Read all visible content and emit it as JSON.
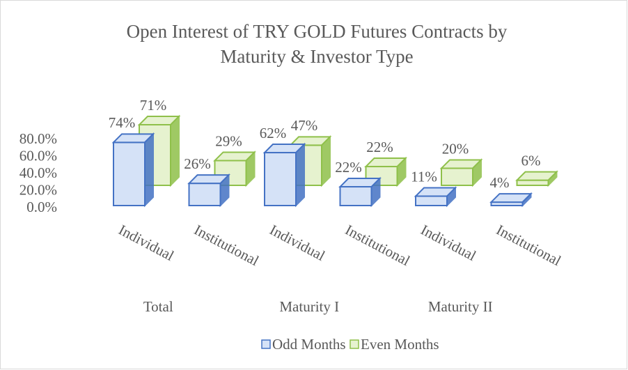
{
  "chart_data": {
    "type": "bar3d",
    "title": "Open Interest of TRY GOLD Futures Contracts by Maturity & Investor  Type",
    "categories": [
      "Individual",
      "Institutional",
      "Individual",
      "Institutional",
      "Individual",
      "Institutional"
    ],
    "groups": [
      "Total",
      "Maturity I",
      "Maturity II"
    ],
    "series": [
      {
        "name": "Odd Months",
        "color": "#4472c4",
        "values": [
          74,
          26,
          62,
          22,
          11,
          4
        ],
        "value_labels": [
          "74%",
          "26%",
          "62%",
          "22%",
          "11%",
          "4%"
        ]
      },
      {
        "name": "Even Months",
        "color": "#8fc04a",
        "values": [
          71,
          29,
          47,
          22,
          20,
          6
        ],
        "value_labels": [
          "71%",
          "29%",
          "47%",
          "22%",
          "20%",
          "6%"
        ]
      }
    ],
    "ylim": [
      0,
      80
    ],
    "yticks": [
      {
        "value": 0,
        "label": "0.0%"
      },
      {
        "value": 20,
        "label": "20.0%"
      },
      {
        "value": 40,
        "label": "40.0%"
      },
      {
        "value": 60,
        "label": "60.0%"
      },
      {
        "value": 80,
        "label": "80.0%"
      }
    ],
    "legend": "bottom"
  }
}
